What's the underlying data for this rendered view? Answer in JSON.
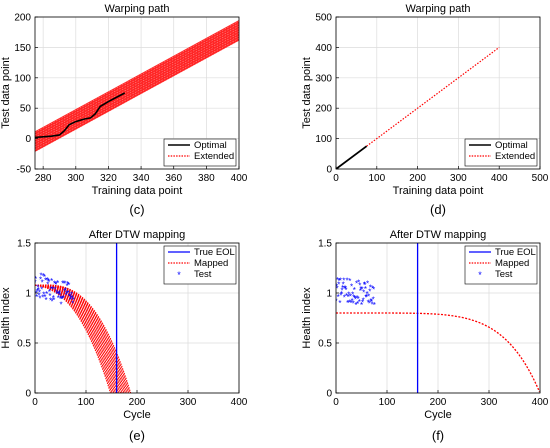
{
  "chart_data": [
    {
      "panel_label": "(c)",
      "type": "line",
      "title": "Warping path",
      "xlabel": "Training data point",
      "ylabel": "Test data point",
      "xlim": [
        275,
        400
      ],
      "ylim": [
        -50,
        200
      ],
      "xticks": [
        280,
        300,
        320,
        340,
        360,
        380,
        400
      ],
      "yticks": [
        -50,
        0,
        50,
        100,
        150,
        200
      ],
      "grid": true,
      "legend": {
        "position": "bottom-right",
        "entries": [
          "Optimal",
          "Extended"
        ]
      },
      "series": [
        {
          "name": "Extended",
          "style": "dotted",
          "color": "#ff0000",
          "band": true,
          "x": [
            275,
            400
          ],
          "y": [
            -5,
            178
          ],
          "band_halfwidth": 17
        },
        {
          "name": "Optimal",
          "style": "solid",
          "color": "#000000",
          "x": [
            275,
            280,
            285,
            290,
            293,
            296,
            300,
            305,
            309,
            312,
            315,
            320,
            325,
            330
          ],
          "y": [
            2,
            3,
            4,
            6,
            13,
            23,
            28,
            32,
            34,
            41,
            53,
            61,
            68,
            75
          ]
        }
      ]
    },
    {
      "panel_label": "(d)",
      "type": "line",
      "title": "Warping path",
      "xlabel": "Training data point",
      "ylabel": "Test data point",
      "xlim": [
        0,
        500
      ],
      "ylim": [
        0,
        500
      ],
      "xticks": [
        0,
        100,
        200,
        300,
        400,
        500
      ],
      "yticks": [
        0,
        100,
        200,
        300,
        400,
        500
      ],
      "grid": true,
      "legend": {
        "position": "bottom-right",
        "entries": [
          "Optimal",
          "Extended"
        ]
      },
      "series": [
        {
          "name": "Optimal",
          "style": "solid",
          "color": "#000000",
          "x": [
            0,
            75
          ],
          "y": [
            0,
            75
          ]
        },
        {
          "name": "Extended",
          "style": "dotted",
          "color": "#ff0000",
          "x": [
            75,
            400
          ],
          "y": [
            75,
            400
          ]
        }
      ]
    },
    {
      "panel_label": "(e)",
      "type": "line",
      "title": "After DTW mapping",
      "xlabel": "Cycle",
      "ylabel": "Health index",
      "xlim": [
        0,
        400
      ],
      "ylim": [
        0,
        1.5
      ],
      "xticks": [
        0,
        100,
        200,
        300,
        400
      ],
      "yticks": [
        0,
        0.5,
        1,
        1.5
      ],
      "grid": true,
      "legend": {
        "position": "top-right",
        "entries": [
          "True EOL",
          "Mapped",
          "Test"
        ]
      },
      "true_eol": 160,
      "mapped": {
        "curve": "1.08*(1-(x/168)^2.6)",
        "band_halfwidth_cycles": 20,
        "x_end": 190
      },
      "test_points": {
        "x_range": [
          0,
          75
        ],
        "count": 70,
        "mean_start": 1.08,
        "mean_end": 0.95,
        "spread": 0.12
      }
    },
    {
      "panel_label": "(f)",
      "type": "line",
      "title": "After DTW mapping",
      "xlabel": "Cycle",
      "ylabel": "Health index",
      "xlim": [
        0,
        400
      ],
      "ylim": [
        0,
        1.5
      ],
      "xticks": [
        0,
        100,
        200,
        300,
        400
      ],
      "yticks": [
        0,
        0.5,
        1,
        1.5
      ],
      "grid": true,
      "legend": {
        "position": "top-right",
        "entries": [
          "True EOL",
          "Mapped",
          "Test"
        ]
      },
      "true_eol": 160,
      "mapped": {
        "curve": "0.80*(1-(x/400)^6)",
        "x_end": 400
      },
      "test_points": {
        "x_range": [
          0,
          75
        ],
        "count": 70,
        "mean_start": 1.02,
        "mean_end": 0.98,
        "spread": 0.12
      }
    }
  ],
  "colors": {
    "optimal": "#000000",
    "extended": "#ff0000",
    "true_eol": "#0000ff",
    "test": "#0000ff",
    "grid": "#dcdcdc"
  }
}
